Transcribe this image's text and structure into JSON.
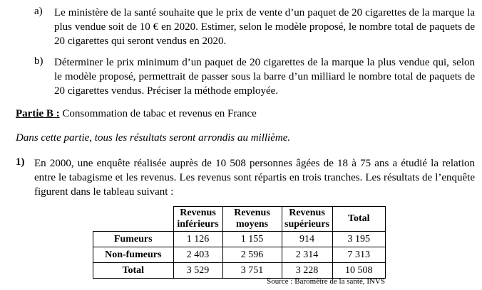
{
  "items": [
    {
      "label": "a)",
      "text": "Le ministère de la santé souhaite que le prix de vente d’un paquet de 20 cigarettes de la marque la plus vendue soit de 10 € en 2020. Estimer, selon le modèle proposé, le nombre total de paquets de 20 cigarettes qui seront vendus en 2020."
    },
    {
      "label": "b)",
      "text": "Déterminer le prix minimum d’un paquet de 20 cigarettes de la marque la plus vendue qui, selon le modèle proposé, permettrait de passer sous la barre d’un milliard le nombre total de paquets de 20 cigarettes vendus. Préciser la méthode employée."
    }
  ],
  "part": {
    "label": "Partie B :",
    "title": "Consommation de tabac et revenus en France"
  },
  "instruction": "Dans cette partie, tous les résultats seront arrondis au millième.",
  "question": {
    "label": "1)",
    "text": "En 2000, une enquête réalisée auprès de 10 508 personnes âgées de 18 à 75 ans a étudié la relation entre le tabagisme et les revenus. Les revenus sont répartis en trois tranches. Les résultats de l’enquête figurent dans le tableau suivant :"
  },
  "table": {
    "header": [
      "Revenus inférieurs",
      "Revenus moyens",
      "Revenus supérieurs",
      "Total"
    ],
    "rows": [
      [
        "Fumeurs",
        "1 126",
        "1 155",
        "914",
        "3 195"
      ],
      [
        "Non-fumeurs",
        "2 403",
        "2 596",
        "2 314",
        "7 313"
      ],
      [
        "Total",
        "3 529",
        "3 751",
        "3 228",
        "10 508"
      ]
    ]
  },
  "source": "Source : Baromètre de la santé, INVS"
}
